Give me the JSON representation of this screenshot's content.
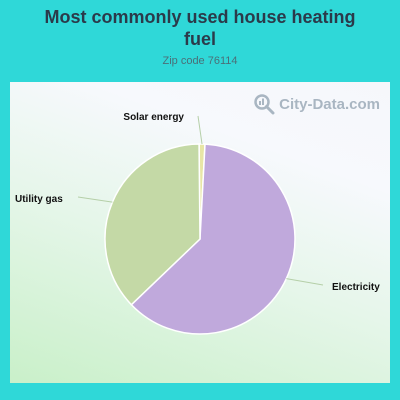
{
  "header": {
    "title_line1": "Most commonly used house heating",
    "title_line2": "fuel",
    "subtitle": "Zip code 76114"
  },
  "watermark": {
    "text": "City-Data.com",
    "icon": "magnifier-icon"
  },
  "colors": {
    "background": "#2fd8d8",
    "electricity": "#c0a9dc",
    "utility_gas": "#c4d9a6",
    "solar_energy": "#e8e6a6",
    "slice_border": "#ffffff",
    "leader_line": "#b5cfa8"
  },
  "chart_data": {
    "type": "pie",
    "title": "Most commonly used house heating fuel",
    "subtitle": "Zip code 76114",
    "slices": [
      {
        "label": "Electricity",
        "value": 62
      },
      {
        "label": "Utility gas",
        "value": 37
      },
      {
        "label": "Solar energy",
        "value": 1
      }
    ]
  }
}
